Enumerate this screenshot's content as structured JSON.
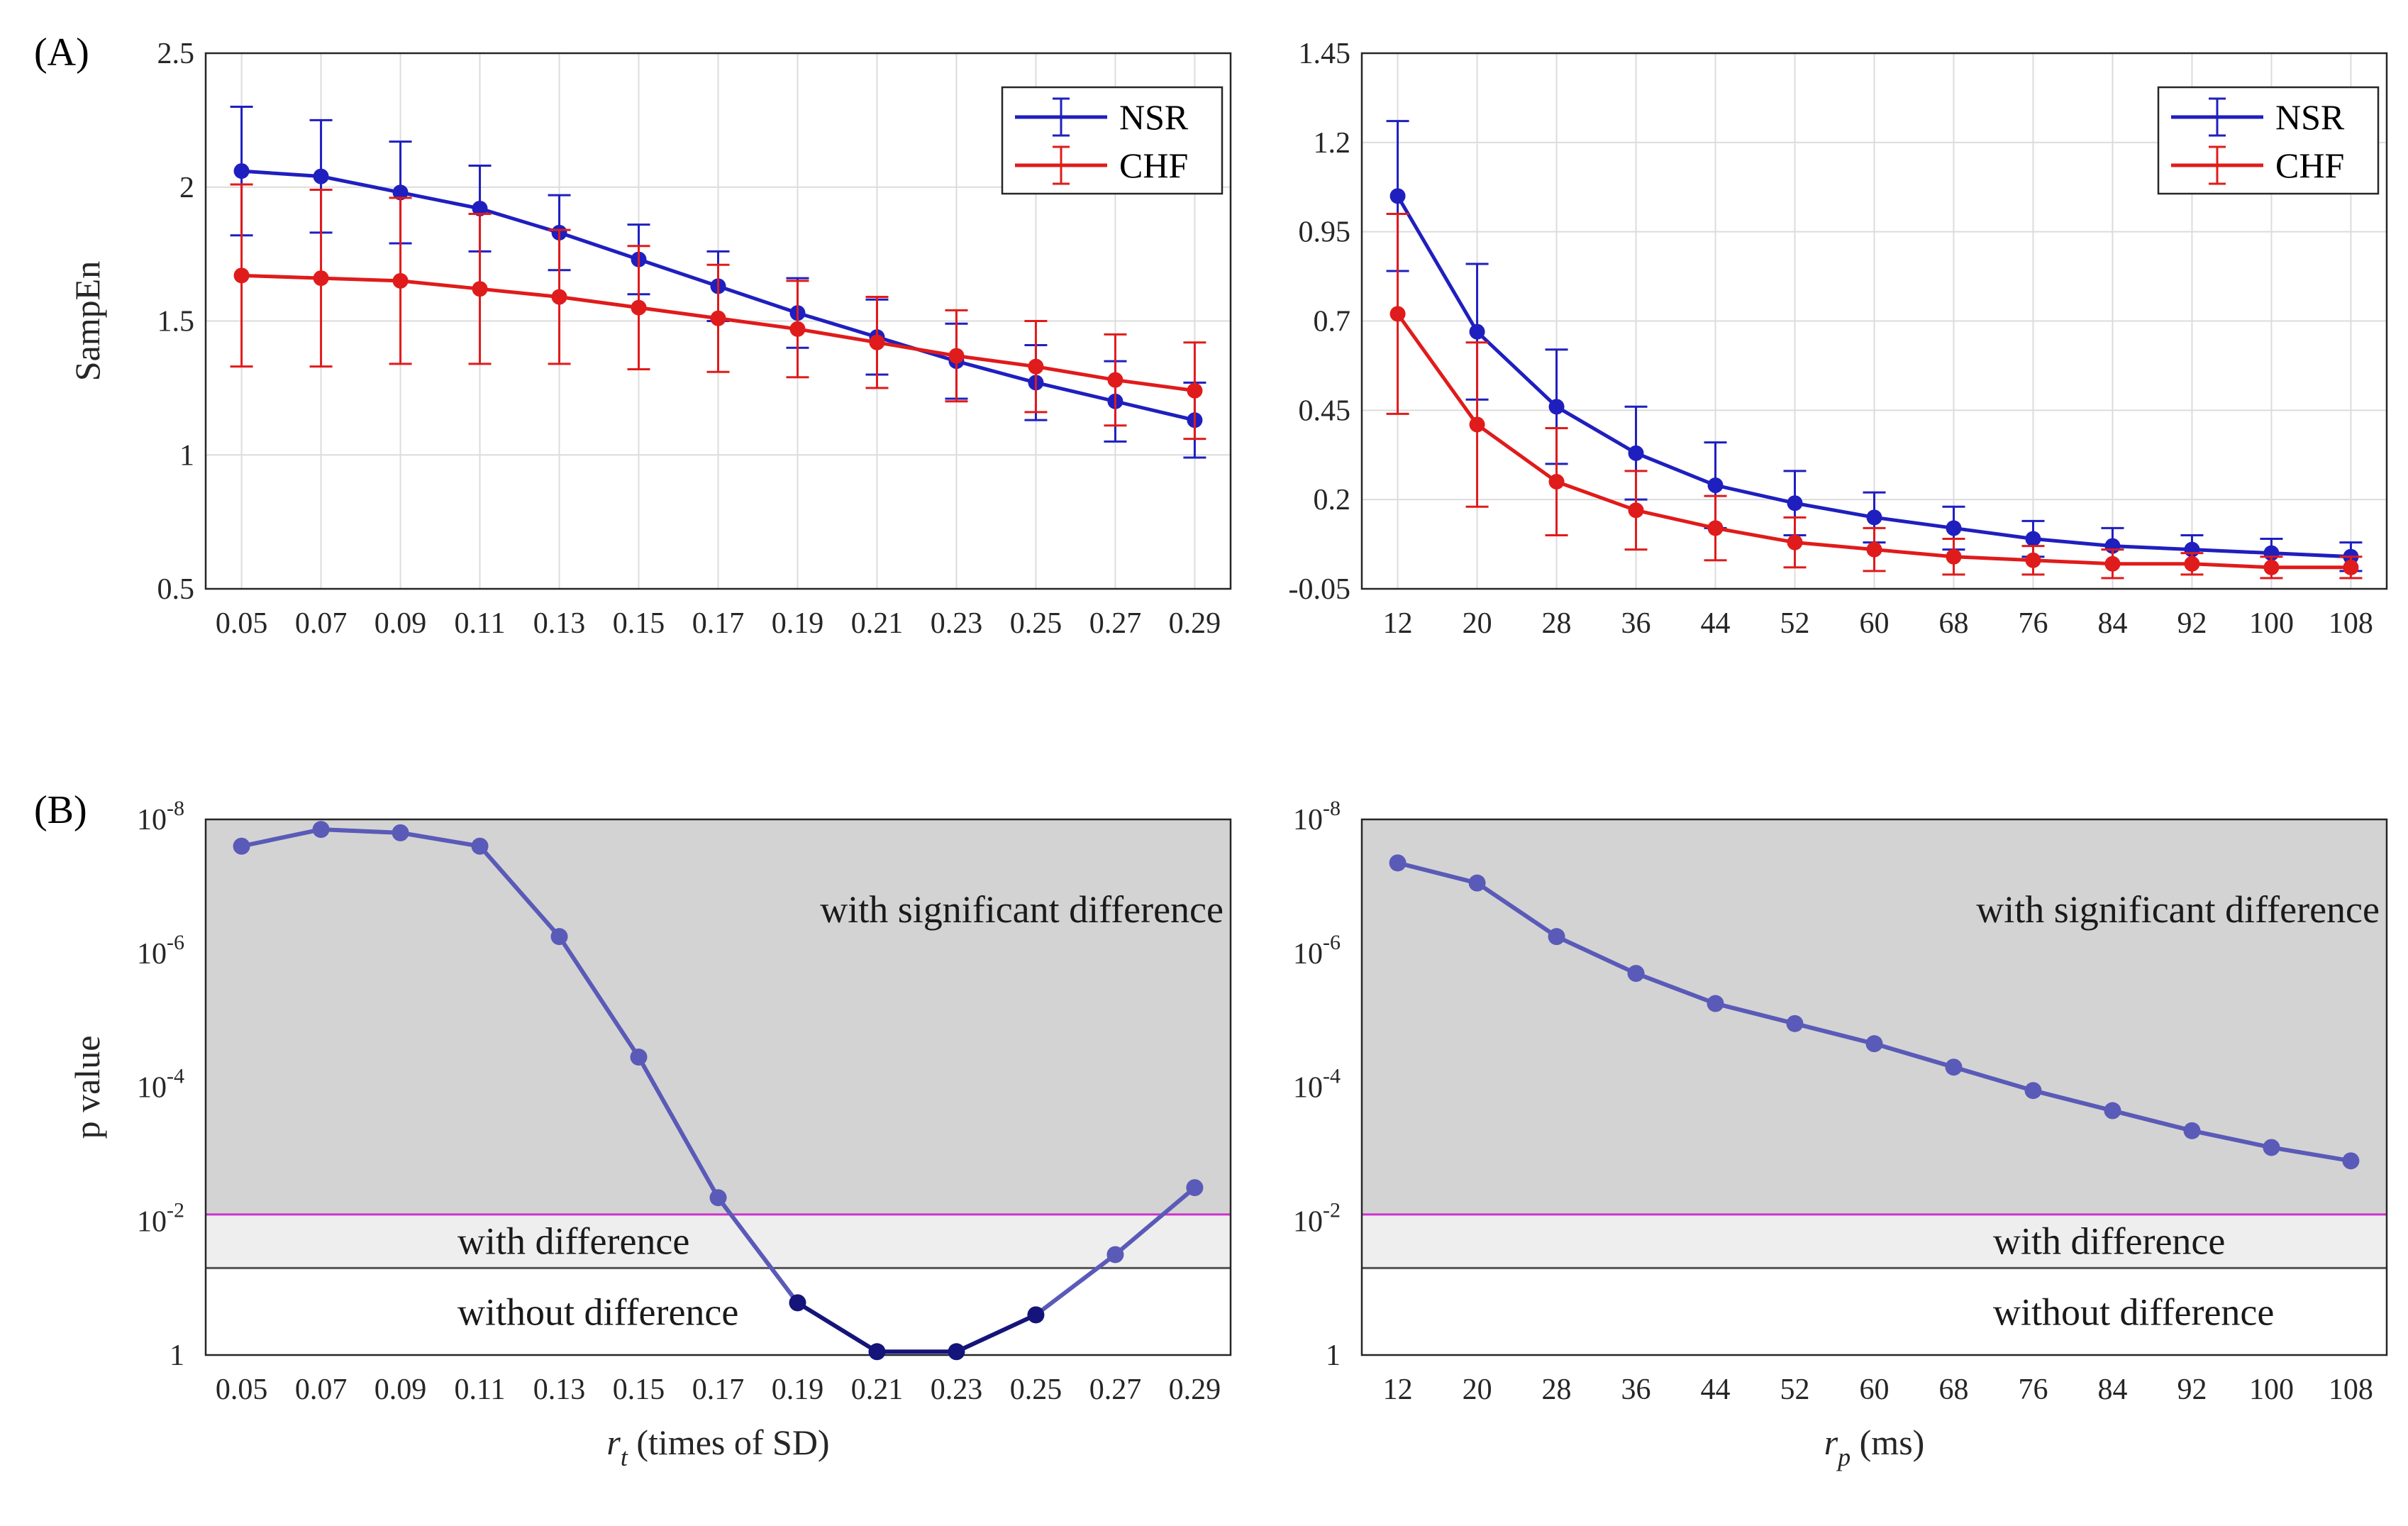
{
  "panel_labels": {
    "a": "(A)",
    "b": "(B)"
  },
  "regions": {
    "significant": "with significant  difference",
    "difference": "with difference",
    "none": "without difference"
  },
  "colors": {
    "nsr": "#1f1fbf",
    "chf": "#e01b1b",
    "pvalue": "#5a5ab8",
    "pvalue_dark": "#14147a",
    "shade_significant": "#d3d3d3",
    "shade_difference": "#eeeeee",
    "threshold": "#cc33cc"
  },
  "chart_data": [
    {
      "id": "A_left",
      "type": "line",
      "title": "",
      "xlabel": "",
      "ylabel": "SampEn",
      "categories": [
        "0.05",
        "0.07",
        "0.09",
        "0.11",
        "0.13",
        "0.15",
        "0.17",
        "0.19",
        "0.21",
        "0.23",
        "0.25",
        "0.27",
        "0.29"
      ],
      "ylim": [
        0.5,
        2.5
      ],
      "yticks": [
        "0.5",
        "1",
        "1.5",
        "2",
        "2.5"
      ],
      "legend_position": "top-right",
      "series": [
        {
          "name": "NSR",
          "values": [
            2.06,
            2.04,
            1.98,
            1.92,
            1.83,
            1.73,
            1.63,
            1.53,
            1.44,
            1.35,
            1.27,
            1.2,
            1.13
          ],
          "errors": [
            0.24,
            0.21,
            0.19,
            0.16,
            0.14,
            0.13,
            0.13,
            0.13,
            0.14,
            0.14,
            0.14,
            0.15,
            0.14
          ]
        },
        {
          "name": "CHF",
          "values": [
            1.67,
            1.66,
            1.65,
            1.62,
            1.59,
            1.55,
            1.51,
            1.47,
            1.42,
            1.37,
            1.33,
            1.28,
            1.24
          ],
          "errors": [
            0.34,
            0.33,
            0.31,
            0.28,
            0.25,
            0.23,
            0.2,
            0.18,
            0.17,
            0.17,
            0.17,
            0.17,
            0.18
          ]
        }
      ]
    },
    {
      "id": "A_right",
      "type": "line",
      "title": "",
      "xlabel": "",
      "ylabel": "",
      "categories": [
        "12",
        "20",
        "28",
        "36",
        "44",
        "52",
        "60",
        "68",
        "76",
        "84",
        "92",
        "100",
        "108"
      ],
      "ylim": [
        -0.05,
        1.45
      ],
      "yticks": [
        "-0.05",
        "0.2",
        "0.45",
        "0.7",
        "0.95",
        "1.2",
        "1.45"
      ],
      "legend_position": "top-right",
      "series": [
        {
          "name": "NSR",
          "values": [
            1.05,
            0.67,
            0.46,
            0.33,
            0.24,
            0.19,
            0.15,
            0.12,
            0.09,
            0.07,
            0.06,
            0.05,
            0.04
          ],
          "errors": [
            0.21,
            0.19,
            0.16,
            0.13,
            0.12,
            0.09,
            0.07,
            0.06,
            0.05,
            0.05,
            0.04,
            0.04,
            0.04
          ]
        },
        {
          "name": "CHF",
          "values": [
            0.72,
            0.41,
            0.25,
            0.17,
            0.12,
            0.08,
            0.06,
            0.04,
            0.03,
            0.02,
            0.02,
            0.01,
            0.01
          ],
          "errors": [
            0.28,
            0.23,
            0.15,
            0.11,
            0.09,
            0.07,
            0.06,
            0.05,
            0.04,
            0.04,
            0.03,
            0.03,
            0.03
          ]
        }
      ]
    },
    {
      "id": "B_left",
      "type": "line",
      "title": "",
      "xlabel": "r",
      "xlabel_sub": "t",
      "xlabel_suffix": " (times of SD)",
      "ylabel": "p value",
      "yscale": "log-reversed",
      "categories": [
        "0.05",
        "0.07",
        "0.09",
        "0.11",
        "0.13",
        "0.15",
        "0.17",
        "0.19",
        "0.21",
        "0.23",
        "0.25",
        "0.27",
        "0.29"
      ],
      "ylim_exponent": [
        0,
        -8
      ],
      "yticks": [
        {
          "base": "1",
          "exp": ""
        },
        {
          "base": "10",
          "exp": "-2"
        },
        {
          "base": "10",
          "exp": "-4"
        },
        {
          "base": "10",
          "exp": "-6"
        },
        {
          "base": "10",
          "exp": "-8"
        }
      ],
      "threshold_exponents": {
        "significant": -2.1,
        "difference": -1.3
      },
      "series": [
        {
          "name": "p value",
          "log10_values": [
            -7.6,
            -7.85,
            -7.8,
            -7.6,
            -6.25,
            -4.45,
            -2.35,
            -0.78,
            -0.05,
            -0.05,
            -0.6,
            -1.5,
            -2.5
          ]
        }
      ]
    },
    {
      "id": "B_right",
      "type": "line",
      "title": "",
      "xlabel": "r",
      "xlabel_sub": "p",
      "xlabel_suffix": " (ms)",
      "ylabel": "",
      "yscale": "log-reversed",
      "categories": [
        "12",
        "20",
        "28",
        "36",
        "44",
        "52",
        "60",
        "68",
        "76",
        "84",
        "92",
        "100",
        "108"
      ],
      "ylim_exponent": [
        0,
        -8
      ],
      "yticks": [
        {
          "base": "1",
          "exp": ""
        },
        {
          "base": "10",
          "exp": "-2"
        },
        {
          "base": "10",
          "exp": "-4"
        },
        {
          "base": "10",
          "exp": "-6"
        },
        {
          "base": "10",
          "exp": "-8"
        }
      ],
      "threshold_exponents": {
        "significant": -2.1,
        "difference": -1.3
      },
      "series": [
        {
          "name": "p value",
          "log10_values": [
            -7.35,
            -7.05,
            -6.25,
            -5.7,
            -5.25,
            -4.95,
            -4.65,
            -4.3,
            -3.95,
            -3.65,
            -3.35,
            -3.1,
            -2.9
          ]
        }
      ]
    }
  ]
}
